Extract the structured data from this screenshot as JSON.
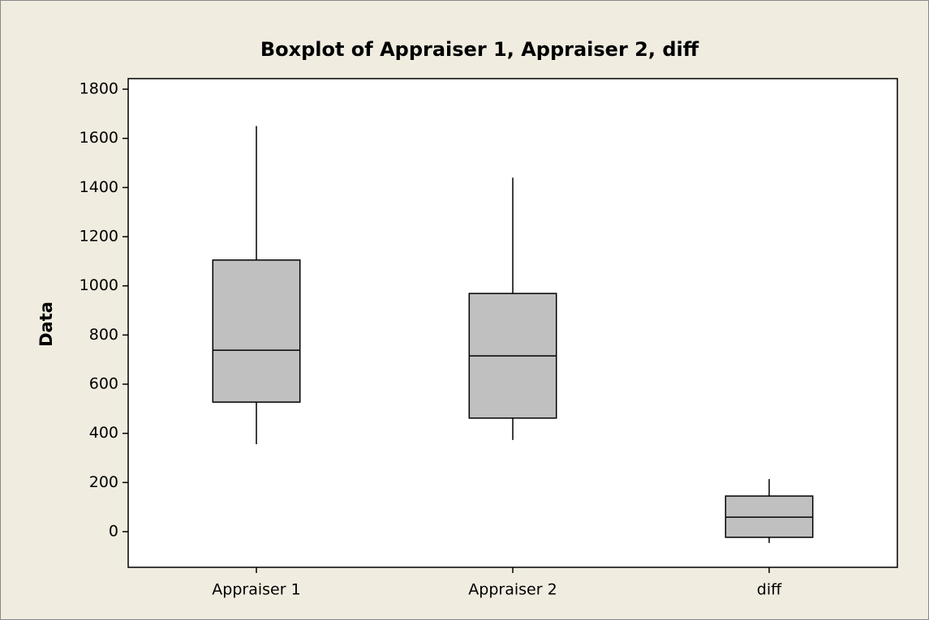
{
  "chart_data": {
    "type": "box",
    "title": "Boxplot of Appraiser 1, Appraiser 2, diff",
    "ylabel": "Data",
    "categories": [
      "Appraiser 1",
      "Appraiser 2",
      "diff"
    ],
    "min": [
      356,
      373,
      -46
    ],
    "q1": [
      527,
      462,
      -23
    ],
    "median": [
      738,
      715,
      59
    ],
    "q3": [
      1105,
      969,
      145
    ],
    "max": [
      1650,
      1440,
      214
    ],
    "color": "#c0c0c0",
    "ylim": [
      -145,
      1843
    ],
    "yticks": [
      0,
      200,
      400,
      600,
      800,
      1000,
      1200,
      1400,
      1600,
      1800
    ]
  }
}
